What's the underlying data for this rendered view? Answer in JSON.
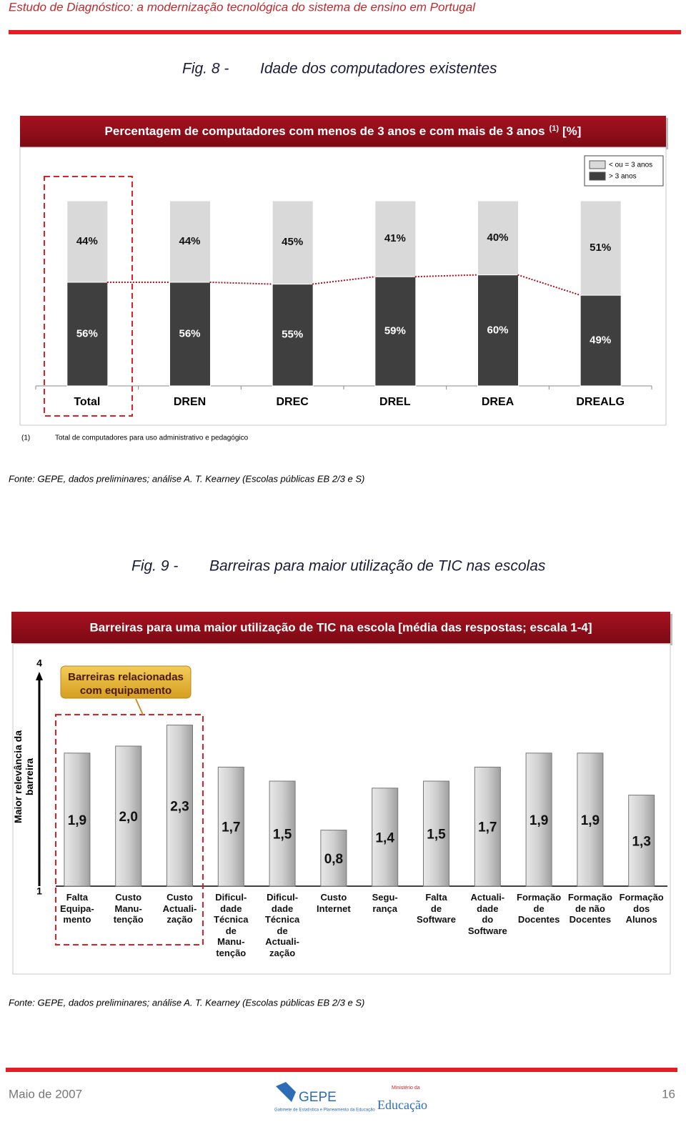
{
  "header": {
    "title": "Estudo de Diagnóstico: a modernização tecnológica do sistema de ensino em Portugal"
  },
  "chart_data": [
    {
      "type": "stacked-bar",
      "fig_label": "Fig. 8 -",
      "fig_title": "Idade dos computadores existentes",
      "title": "Percentagem de computadores com menos de 3 anos e com mais de 3 anos",
      "title_note": "(1)",
      "title_unit": "[%]",
      "categories": [
        "Total",
        "DREN",
        "DREC",
        "DREL",
        "DREA",
        "DREALG"
      ],
      "series": [
        {
          "name": "> 3 anos",
          "color": "#3f3f3f",
          "values": [
            56,
            56,
            55,
            59,
            60,
            49
          ],
          "value_labels": [
            "56%",
            "56%",
            "55%",
            "59%",
            "60%",
            "49%"
          ]
        },
        {
          "name": "< ou = 3 anos",
          "color": "#d9d9d9",
          "values": [
            44,
            44,
            45,
            41,
            40,
            51
          ],
          "value_labels": [
            "44%",
            "44%",
            "45%",
            "41%",
            "40%",
            "51%"
          ]
        }
      ],
      "legend": "top-right",
      "footnote_mark": "(1)",
      "footnote": "Total de computadores para uso administrativo e pedagógico",
      "source": "Fonte: GEPE, dados preliminares; análise A. T. Kearney (Escolas públicas EB 2/3 e S)"
    },
    {
      "type": "bar",
      "fig_label": "Fig. 9 -",
      "fig_title": "Barreiras para maior utilização de TIC nas escolas",
      "title": "Barreiras para uma maior utilização de TIC na escola [média das respostas; escala 1-4]",
      "ylabel": "Maior relevância da barreira",
      "axis_ends": [
        1,
        4
      ],
      "annotation": "Barreiras relacionadas\ncom equipamento",
      "categories": [
        "Falta\nEquipa-\nmento",
        "Custo\nManu-\ntenção",
        "Custo\nActuali-\nzação",
        "Dificul-\ndade\nTécnica\nde\nManu-\ntenção",
        "Dificul-\ndade\nTécnica\nde\nActuali-\nzação",
        "Custo\nInternet",
        "Segu-\nrança",
        "Falta\nde\nSoftware",
        "Actuali-\ndade\ndo\nSoftware",
        "Formação\nde\nDocentes",
        "Formação\nde não\nDocentes",
        "Formação\ndos\nAlunos"
      ],
      "values": [
        1.9,
        2.0,
        2.3,
        1.7,
        1.5,
        0.8,
        1.4,
        1.5,
        1.7,
        1.9,
        1.9,
        1.3
      ],
      "value_labels": [
        "1,9",
        "2,0",
        "2,3",
        "1,7",
        "1,5",
        "0,8",
        "1,4",
        "1,5",
        "1,7",
        "1,9",
        "1,9",
        "1,3"
      ],
      "color": "#c8c8c8",
      "source": "Fonte: GEPE, dados preliminares; análise A. T. Kearney (Escolas públicas EB 2/3 e S)"
    }
  ],
  "footer": {
    "date": "Maio de 2007",
    "page": "16",
    "logo_left": "GEPE",
    "logo_left_sub": "Gabinete de Estatística e Planeamento da Educação",
    "logo_right_top": "Ministério da",
    "logo_right": "Educação"
  }
}
